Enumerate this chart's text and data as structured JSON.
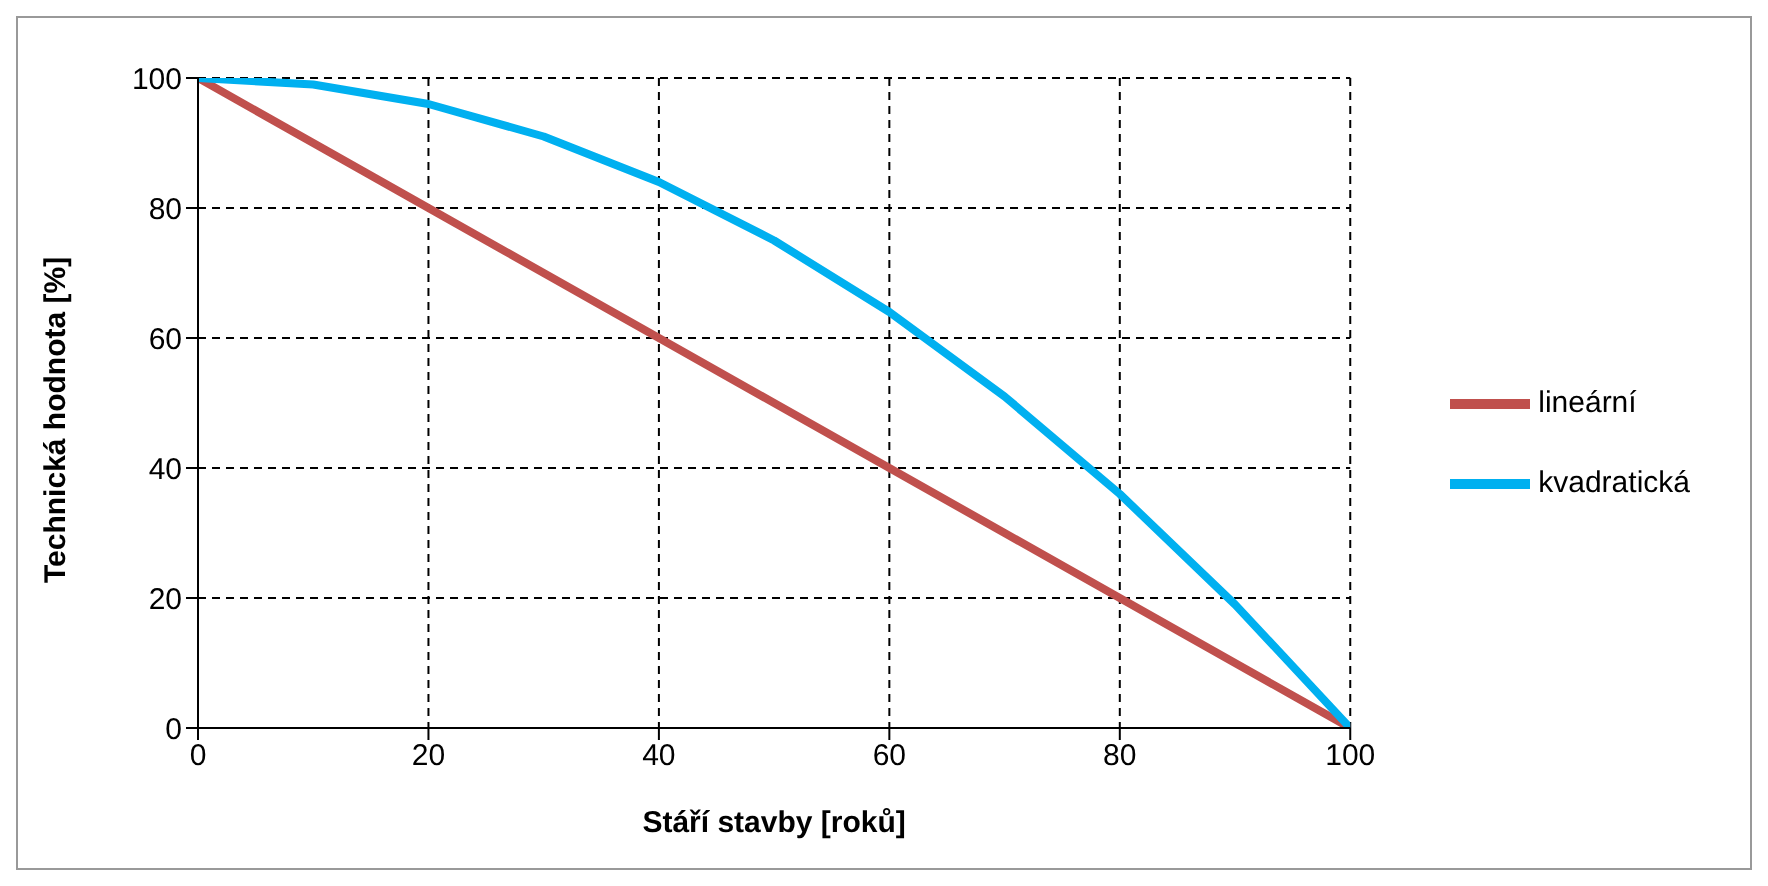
{
  "chart_data": {
    "type": "line",
    "xlabel": "Stáří stavby [roků]",
    "ylabel": "Technická  hodnota [%]",
    "x": [
      0,
      10,
      20,
      30,
      40,
      50,
      60,
      70,
      80,
      90,
      100
    ],
    "series": [
      {
        "name": "lineární",
        "color": "#c0504d",
        "values": [
          100,
          90,
          80,
          70,
          60,
          50,
          40,
          30,
          20,
          10,
          0
        ]
      },
      {
        "name": "kvadratická",
        "color": "#00b0f0",
        "values": [
          100,
          99,
          96,
          91,
          84,
          75,
          64,
          51,
          36,
          19,
          0
        ]
      }
    ],
    "xlim": [
      0,
      100
    ],
    "xticks": [
      0,
      20,
      40,
      60,
      80,
      100
    ],
    "ylim": [
      0,
      100
    ],
    "yticks": [
      0,
      20,
      40,
      60,
      80,
      100
    ],
    "grid": true,
    "legend": "right",
    "marker": "none",
    "line_style": "solid"
  }
}
